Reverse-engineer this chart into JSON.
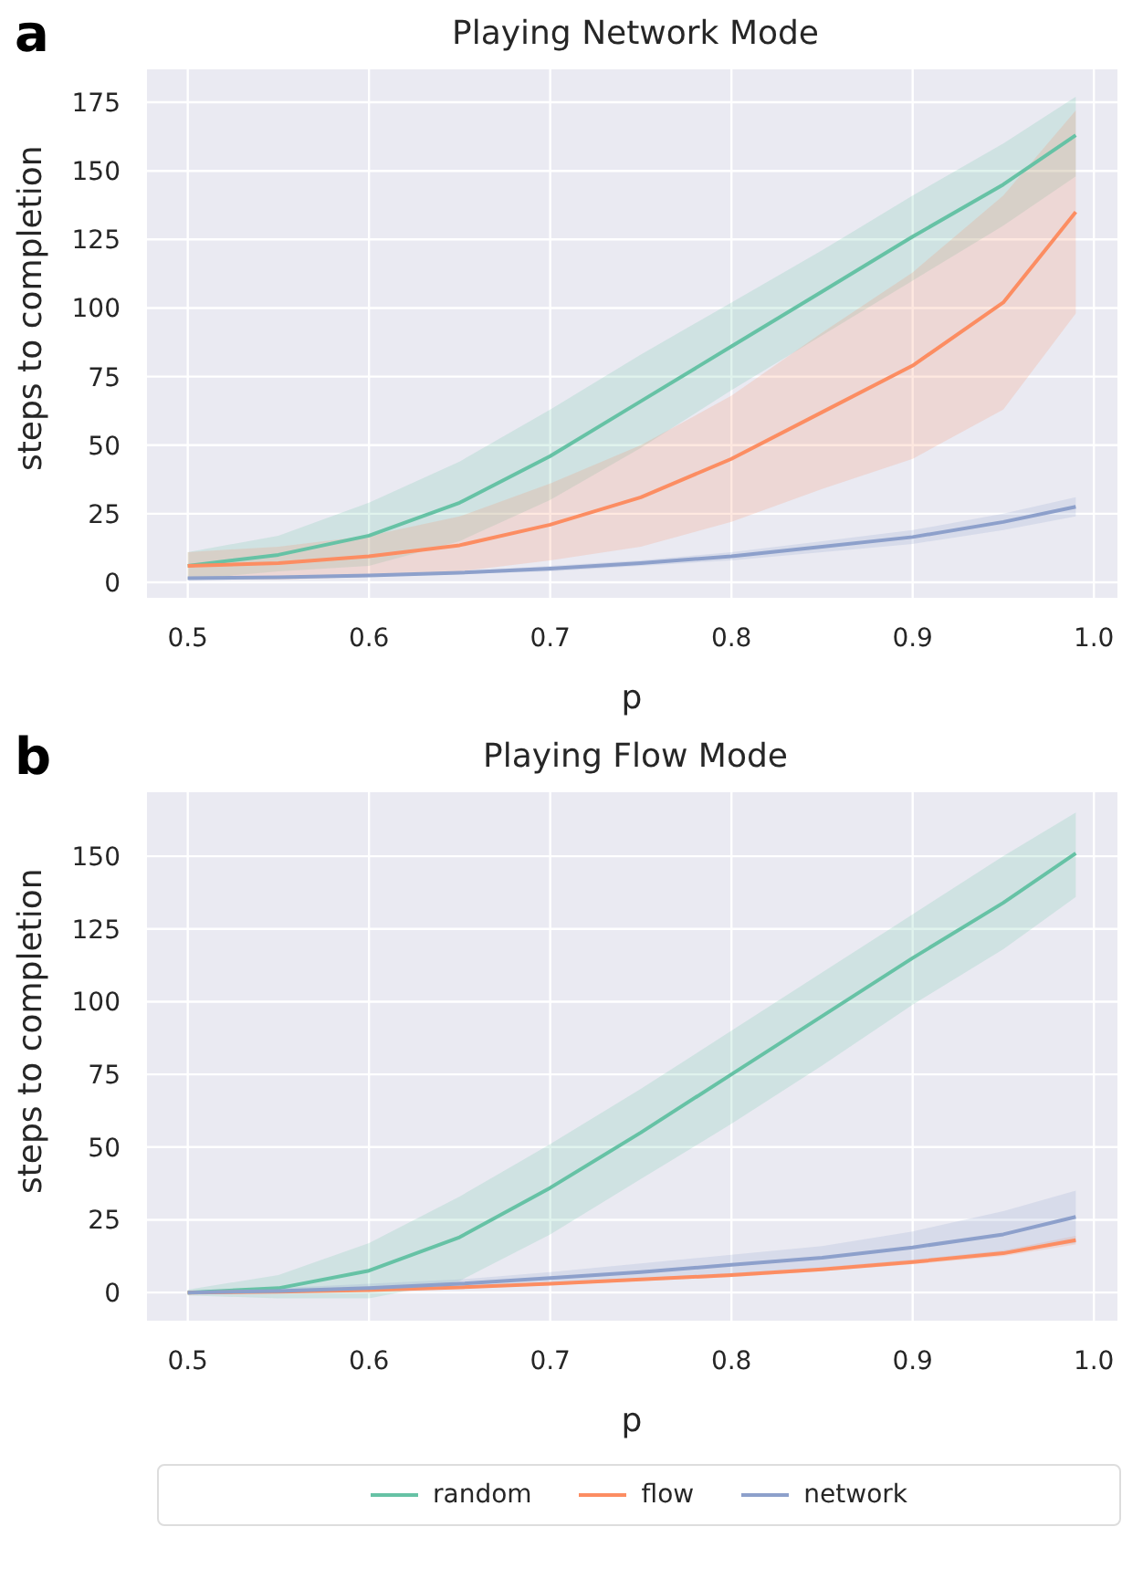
{
  "chart_data": [
    {
      "type": "line",
      "title": "Playing Network Mode",
      "xlabel": "p",
      "ylabel": "steps to completion",
      "annotations": [
        "a"
      ],
      "xlim": [
        0.477,
        1.013
      ],
      "ylim": [
        -6,
        187
      ],
      "xticks": [
        0.5,
        0.6,
        0.7,
        0.8,
        0.9,
        {
          "value": 1,
          "label": "1.0"
        }
      ],
      "yticks": [
        0,
        25,
        50,
        75,
        100,
        125,
        150,
        175
      ],
      "grid": true,
      "legend": "bottom",
      "x": [
        0.5,
        0.55,
        0.6,
        0.65,
        0.7,
        0.75,
        0.8,
        0.85,
        0.9,
        0.95,
        0.99
      ],
      "series": [
        {
          "name": "random",
          "color": "#66c2a5",
          "values": [
            6,
            10,
            17,
            29,
            46,
            66,
            86,
            106,
            126,
            145,
            163
          ],
          "lower": [
            1,
            4,
            6,
            15,
            30,
            49,
            70,
            90,
            110,
            130,
            148
          ],
          "upper": [
            11,
            17,
            29,
            44,
            63,
            83,
            102,
            121,
            141,
            160,
            177
          ]
        },
        {
          "name": "flow",
          "color": "#fc8d62",
          "values": [
            6,
            7,
            9.5,
            13.5,
            21,
            31,
            45,
            62,
            79,
            102,
            135
          ],
          "lower": [
            1,
            1,
            2,
            4,
            8,
            13,
            22,
            34,
            45,
            63,
            98
          ],
          "upper": [
            11,
            13,
            17,
            24,
            36,
            50,
            68,
            91,
            113,
            141,
            172
          ]
        },
        {
          "name": "network",
          "color": "#8da0cb",
          "values": [
            1.5,
            1.8,
            2.5,
            3.5,
            5,
            7,
            9.5,
            13,
            16.5,
            22,
            27.5
          ],
          "lower": [
            1,
            1.3,
            2,
            3,
            4,
            6,
            8,
            11,
            14,
            19,
            24
          ],
          "upper": [
            2,
            2.3,
            3,
            4,
            6,
            8,
            11,
            15,
            19,
            25,
            31
          ]
        }
      ]
    },
    {
      "type": "line",
      "title": "Playing Flow Mode",
      "xlabel": "p",
      "ylabel": "steps to completion",
      "annotations": [
        "b"
      ],
      "xlim": [
        0.477,
        1.013
      ],
      "ylim": [
        -10,
        172
      ],
      "xticks": [
        0.5,
        0.6,
        0.7,
        0.8,
        0.9,
        {
          "value": 1,
          "label": "1.0"
        }
      ],
      "yticks": [
        0,
        25,
        50,
        75,
        100,
        125,
        150
      ],
      "grid": true,
      "legend": "bottom",
      "x": [
        0.5,
        0.55,
        0.6,
        0.65,
        0.7,
        0.75,
        0.8,
        0.85,
        0.9,
        0.95,
        0.99
      ],
      "series": [
        {
          "name": "random",
          "color": "#66c2a5",
          "values": [
            0,
            1.5,
            7.5,
            19,
            36,
            55,
            75,
            95,
            115,
            134,
            151
          ],
          "lower": [
            -1,
            -2,
            -2,
            4,
            20,
            39,
            58,
            78,
            99,
            118,
            136
          ],
          "upper": [
            1,
            6,
            17,
            33,
            51,
            70,
            90,
            110,
            130,
            150,
            165
          ]
        },
        {
          "name": "flow",
          "color": "#fc8d62",
          "values": [
            0,
            0.3,
            0.8,
            1.8,
            3,
            4.5,
            6,
            8,
            10.5,
            13.5,
            18
          ],
          "lower": [
            -0.3,
            0,
            0.5,
            1.3,
            2.5,
            4,
            5.3,
            7.3,
            9.7,
            12.5,
            16.5
          ],
          "upper": [
            0.3,
            0.6,
            1.1,
            2.3,
            3.5,
            5,
            6.7,
            8.7,
            11.3,
            14.5,
            19.5
          ]
        },
        {
          "name": "network",
          "color": "#8da0cb",
          "values": [
            0,
            0.5,
            1.5,
            3,
            5,
            7,
            9.5,
            12,
            15.5,
            20,
            26
          ],
          "lower": [
            -0.5,
            0,
            0.5,
            1.5,
            3,
            5,
            6.5,
            8.5,
            11,
            14,
            17
          ],
          "upper": [
            0.5,
            1.5,
            3,
            4.5,
            7,
            10,
            13,
            16,
            21,
            28,
            35
          ]
        }
      ]
    }
  ]
}
